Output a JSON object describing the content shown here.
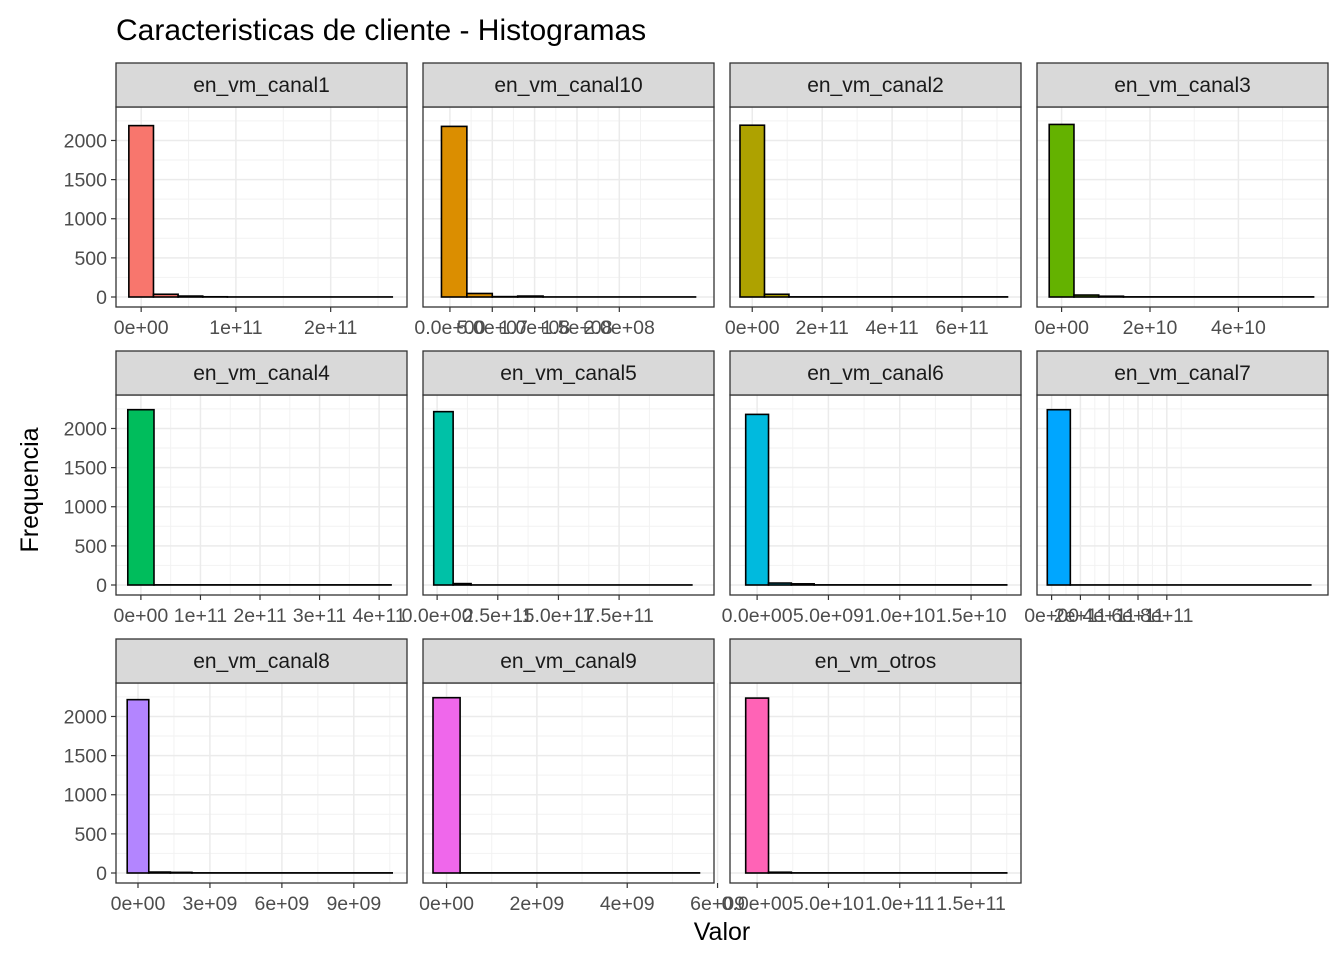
{
  "chart_data": {
    "type": "histogram-facets",
    "title": "Caracteristicas de cliente - Histogramas",
    "xlabel": "Valor",
    "ylabel": "Frequencia",
    "y_ticks": [
      0,
      500,
      1000,
      1500,
      2000
    ],
    "y_tick_labels": [
      "0",
      "500",
      "1000",
      "1500",
      "2000"
    ],
    "ylim": [
      0,
      2300
    ],
    "grid": true,
    "theme": "bw",
    "bar_outline_color": "#000000",
    "facets": [
      {
        "name": "en_vm_canal1",
        "color": "#F8766D",
        "xlim": [
          -16000000000.0,
          270000000000.0
        ],
        "x_ticks": [
          0,
          100000000000.0,
          200000000000.0
        ],
        "x_tick_labels": [
          "0e+00",
          "1e+11",
          "2e+11"
        ],
        "bars": [
          {
            "x0": -13000000000.0,
            "x1": 13000000000.0,
            "count": 2190
          },
          {
            "x0": 13000000000.0,
            "x1": 39000000000.0,
            "count": 35
          },
          {
            "x0": 39000000000.0,
            "x1": 65000000000.0,
            "count": 12
          },
          {
            "x0": 65000000000.0,
            "x1": 91000000000.0,
            "count": 3
          },
          {
            "x0": 91000000000.0,
            "x1": 265000000000.0,
            "count": 1
          }
        ]
      },
      {
        "name": "en_vm_canal10",
        "color": "#DB8E00",
        "xlim": [
          -20000000.0,
          300000000.0
        ],
        "x_ticks": [
          0,
          50000000.0,
          100000000.0,
          150000000.0,
          200000000.0
        ],
        "x_tick_labels": [
          "0.0e+00",
          "5.0e+07",
          "1.0e+08",
          "1.5e+08",
          "2.0e+08"
        ],
        "bars": [
          {
            "x0": -10000000.0,
            "x1": 20000000.0,
            "count": 2180
          },
          {
            "x0": 20000000.0,
            "x1": 50000000.0,
            "count": 45
          },
          {
            "x0": 50000000.0,
            "x1": 80000000.0,
            "count": 5
          },
          {
            "x0": 80000000.0,
            "x1": 110000000.0,
            "count": 12
          },
          {
            "x0": 110000000.0,
            "x1": 290000000.0,
            "count": 1
          }
        ]
      },
      {
        "name": "en_vm_canal2",
        "color": "#AEA200",
        "xlim": [
          -35000000000.0,
          740000000000.0
        ],
        "x_ticks": [
          0,
          200000000000.0,
          400000000000.0,
          600000000000.0
        ],
        "x_tick_labels": [
          "0e+00",
          "2e+11",
          "4e+11",
          "6e+11"
        ],
        "bars": [
          {
            "x0": -35000000000.0,
            "x1": 35000000000.0,
            "count": 2195
          },
          {
            "x0": 35000000000.0,
            "x1": 105000000000.0,
            "count": 35
          },
          {
            "x0": 105000000000.0,
            "x1": 730000000000.0,
            "count": 2
          }
        ]
      },
      {
        "name": "en_vm_canal3",
        "color": "#64B200",
        "xlim": [
          -3300000000.0,
          58000000000.0
        ],
        "x_ticks": [
          0,
          20000000000.0,
          40000000000.0
        ],
        "x_tick_labels": [
          "0e+00",
          "2e+10",
          "4e+10"
        ],
        "bars": [
          {
            "x0": -2800000000.0,
            "x1": 2800000000.0,
            "count": 2205
          },
          {
            "x0": 2800000000.0,
            "x1": 8400000000.0,
            "count": 25
          },
          {
            "x0": 8400000000.0,
            "x1": 14000000000.0,
            "count": 10
          },
          {
            "x0": 14000000000.0,
            "x1": 57000000000.0,
            "count": 2
          }
        ]
      },
      {
        "name": "en_vm_canal4",
        "color": "#00BD5C",
        "xlim": [
          -25000000000.0,
          430000000000.0
        ],
        "x_ticks": [
          0,
          100000000000.0,
          200000000000.0,
          300000000000.0,
          400000000000.0
        ],
        "x_tick_labels": [
          "0e+00",
          "1e+11",
          "2e+11",
          "3e+11",
          "4e+11"
        ],
        "bars": [
          {
            "x0": -22000000000.0,
            "x1": 22000000000.0,
            "count": 2240
          },
          {
            "x0": 22000000000.0,
            "x1": 420000000000.0,
            "count": 2
          }
        ]
      },
      {
        "name": "en_vm_canal5",
        "color": "#00C1A7",
        "xlim": [
          -17000000000.0,
          1100000000000.0
        ],
        "x_ticks": [
          0,
          250000000000.0,
          500000000000.0,
          750000000000.0
        ],
        "x_tick_labels": [
          "0.0e+00",
          "2.5e+11",
          "5.0e+11",
          "7.5e+11"
        ],
        "bars": [
          {
            "x0": -14000000000.0,
            "x1": 66000000000.0,
            "count": 2215
          },
          {
            "x0": 66000000000.0,
            "x1": 140000000000.0,
            "count": 18
          },
          {
            "x0": 140000000000.0,
            "x1": 1050000000000.0,
            "count": 1
          }
        ]
      },
      {
        "name": "en_vm_canal6",
        "color": "#00BADE",
        "xlim": [
          -1200000000.0,
          17800000000.0
        ],
        "x_ticks": [
          0,
          5000000000.0,
          10000000000.0,
          15000000000.0
        ],
        "x_tick_labels": [
          "0.0e+00",
          "5.0e+09",
          "1.0e+10",
          "1.5e+10"
        ],
        "bars": [
          {
            "x0": -800000000.0,
            "x1": 800000000.0,
            "count": 2180
          },
          {
            "x0": 800000000.0,
            "x1": 2400000000.0,
            "count": 25
          },
          {
            "x0": 2400000000.0,
            "x1": 4000000000.0,
            "count": 15
          },
          {
            "x0": 4000000000.0,
            "x1": 17500000000.0,
            "count": 2
          }
        ]
      },
      {
        "name": "en_vm_canal7",
        "color": "#00A6FF",
        "xlim": [
          -32000000000.0,
          1850000000000.0
        ],
        "x_ticks": [
          0,
          200000000000.0,
          400000000000.0,
          600000000000.0,
          800000000000.0
        ],
        "x_tick_labels": [
          "0e+00",
          "2e+11",
          "4e+11",
          "6e+11",
          "8e+11"
        ],
        "bars": [
          {
            "x0": -30000000000.0,
            "x1": 130000000000.0,
            "count": 2240
          },
          {
            "x0": 130000000000.0,
            "x1": 1800000000000.0,
            "count": 1
          }
        ]
      },
      {
        "name": "en_vm_canal8",
        "color": "#B385FF",
        "xlim": [
          -500000000.0,
          10800000000.0
        ],
        "x_ticks": [
          0,
          3000000000.0,
          6000000000.0,
          9000000000.0
        ],
        "x_tick_labels": [
          "0e+00",
          "3e+09",
          "6e+09",
          "9e+09"
        ],
        "bars": [
          {
            "x0": -450000000.0,
            "x1": 450000000.0,
            "count": 2215
          },
          {
            "x0": 450000000.0,
            "x1": 1350000000.0,
            "count": 12
          },
          {
            "x0": 1350000000.0,
            "x1": 2250000000.0,
            "count": 8
          },
          {
            "x0": 2250000000.0,
            "x1": 10600000000.0,
            "count": 2
          }
        ]
      },
      {
        "name": "en_vm_canal9",
        "color": "#EF67EB",
        "xlim": [
          -300000000.0,
          5700000000.0
        ],
        "x_ticks": [
          0,
          2000000000.0,
          4000000000.0,
          6000000000.0
        ],
        "x_tick_labels": [
          "0e+00",
          "2e+09",
          "4e+09",
          "6e+09"
        ],
        "bars": [
          {
            "x0": -300000000.0,
            "x1": 300000000.0,
            "count": 2240
          },
          {
            "x0": 300000000.0,
            "x1": 5600000000.0,
            "count": 2
          }
        ]
      },
      {
        "name": "en_vm_otros",
        "color": "#FF63B6",
        "xlim": [
          -12000000000.0,
          178000000000.0
        ],
        "x_ticks": [
          0,
          50000000000.0,
          100000000000.0,
          150000000000.0
        ],
        "x_tick_labels": [
          "0.0e+00",
          "5.0e+10",
          "1.0e+11",
          "1.5e+11"
        ],
        "bars": [
          {
            "x0": -8000000000.0,
            "x1": 8000000000.0,
            "count": 2235
          },
          {
            "x0": 8000000000.0,
            "x1": 24000000000.0,
            "count": 10
          },
          {
            "x0": 24000000000.0,
            "x1": 175000000000.0,
            "count": 2
          }
        ]
      }
    ]
  }
}
